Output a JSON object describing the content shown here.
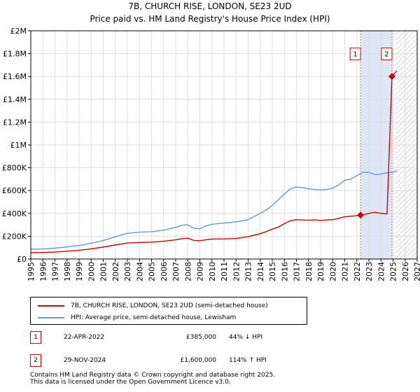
{
  "chart_data": {
    "type": "line",
    "title": "7B, CHURCH RISE, LONDON, SE23 2UD",
    "subtitle": "Price paid vs. HM Land Registry's House Price Index (HPI)",
    "xlabel": "",
    "ylabel": "",
    "xlim": [
      1995,
      2027
    ],
    "ylim": [
      0,
      2000000
    ],
    "x_ticks": [
      1995,
      1996,
      1997,
      1998,
      1999,
      2000,
      2001,
      2002,
      2003,
      2004,
      2005,
      2006,
      2007,
      2008,
      2009,
      2010,
      2011,
      2012,
      2013,
      2014,
      2015,
      2016,
      2017,
      2018,
      2019,
      2020,
      2021,
      2022,
      2023,
      2024,
      2025,
      2026,
      2027
    ],
    "x_tick_labels": [
      "1995",
      "1996",
      "1997",
      "1998",
      "1999",
      "2000",
      "2001",
      "2002",
      "2003",
      "2004",
      "2005",
      "2006",
      "2007",
      "2008",
      "2009",
      "2010",
      "2011",
      "2012",
      "2013",
      "2014",
      "2015",
      "2016",
      "2017",
      "2018",
      "2019",
      "2020",
      "2021",
      "2022",
      "2023",
      "2024",
      "2025",
      "2026",
      "2027"
    ],
    "y_ticks": [
      0,
      200000,
      400000,
      600000,
      800000,
      1000000,
      1200000,
      1400000,
      1600000,
      1800000,
      2000000
    ],
    "y_tick_labels": [
      "£0",
      "£200K",
      "£400K",
      "£600K",
      "£800K",
      "£1M",
      "£1.2M",
      "£1.4M",
      "£1.6M",
      "£1.8M",
      "£2M"
    ],
    "grid": true,
    "future_hatch_start": 2025.2,
    "series": [
      {
        "name": "7B, CHURCH RISE, LONDON, SE23 2UD (semi-detached house)",
        "color": "#cc0000",
        "x": [
          1995.0,
          1996.0,
          1997.0,
          1998.0,
          1999.0,
          2000.0,
          2001.0,
          2002.0,
          2003.0,
          2004.0,
          2005.0,
          2006.0,
          2007.0,
          2007.5,
          2008.0,
          2008.5,
          2009.0,
          2009.5,
          2010.0,
          2011.0,
          2012.0,
          2013.0,
          2014.0,
          2014.5,
          2015.0,
          2015.5,
          2016.0,
          2016.5,
          2017.0,
          2017.5,
          2018.0,
          2018.5,
          2019.0,
          2019.5,
          2020.0,
          2020.5,
          2021.0,
          2021.5,
          2022.0,
          2022.31,
          2022.6,
          2023.0,
          2023.5,
          2024.0,
          2024.5,
          2024.91,
          2025.0,
          2025.3
        ],
        "y": [
          56000,
          57000,
          61000,
          68000,
          76000,
          89000,
          104000,
          123000,
          140000,
          145000,
          148000,
          155000,
          168000,
          178000,
          182000,
          163000,
          160000,
          168000,
          175000,
          176000,
          180000,
          195000,
          222000,
          240000,
          262000,
          280000,
          310000,
          335000,
          345000,
          342000,
          340000,
          343000,
          338000,
          342000,
          345000,
          355000,
          370000,
          375000,
          380000,
          385000,
          388000,
          400000,
          410000,
          400000,
          395000,
          1600000,
          1610000,
          1650000
        ]
      },
      {
        "name": "HPI: Average price, semi-detached house, Lewisham",
        "color": "#6699cc",
        "x": [
          1995.0,
          1996.0,
          1997.0,
          1998.0,
          1999.0,
          2000.0,
          2001.0,
          2002.0,
          2003.0,
          2004.0,
          2005.0,
          2006.0,
          2007.0,
          2007.5,
          2008.0,
          2008.5,
          2009.0,
          2009.5,
          2010.0,
          2011.0,
          2012.0,
          2013.0,
          2014.0,
          2014.5,
          2015.0,
          2015.5,
          2016.0,
          2016.5,
          2017.0,
          2017.5,
          2018.0,
          2018.5,
          2019.0,
          2019.5,
          2020.0,
          2020.5,
          2021.0,
          2021.5,
          2022.0,
          2022.5,
          2023.0,
          2023.5,
          2024.0,
          2024.5,
          2025.0,
          2025.3
        ],
        "y": [
          85000,
          88000,
          95000,
          106000,
          118000,
          138000,
          162000,
          195000,
          225000,
          235000,
          240000,
          252000,
          278000,
          295000,
          300000,
          270000,
          265000,
          290000,
          305000,
          315000,
          325000,
          345000,
          400000,
          430000,
          470000,
          520000,
          570000,
          615000,
          630000,
          625000,
          615000,
          610000,
          605000,
          610000,
          620000,
          650000,
          690000,
          700000,
          730000,
          760000,
          760000,
          740000,
          745000,
          755000,
          760000,
          775000
        ]
      }
    ],
    "transactions": [
      {
        "id": "1",
        "date": "22-APR-2022",
        "x": 2022.31,
        "price": 385000,
        "price_label": "£385,000",
        "hpi_change": "44% ↓ HPI"
      },
      {
        "id": "2",
        "date": "29-NOV-2024",
        "x": 2024.91,
        "price": 1600000,
        "price_label": "£1,600,000",
        "hpi_change": "114% ↑ HPI"
      }
    ]
  },
  "legend": {
    "property_label": "7B, CHURCH RISE, LONDON, SE23 2UD (semi-detached house)",
    "hpi_label": "HPI: Average price, semi-detached house, Lewisham",
    "property_color": "#cc0000",
    "hpi_color": "#6699cc"
  },
  "footer": {
    "line1": "Contains HM Land Registry data © Crown copyright and database right 2025.",
    "line2": "This data is licensed under the Open Government Licence v3.0."
  }
}
